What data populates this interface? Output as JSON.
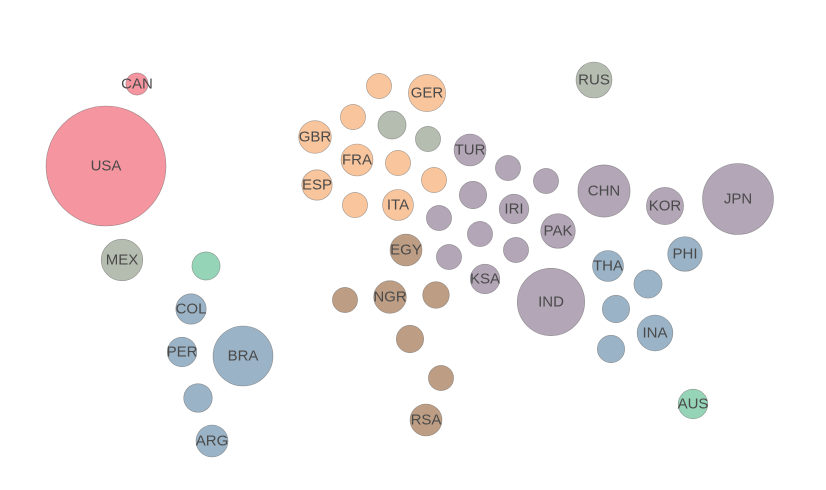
{
  "chart_data": {
    "type": "bubble-map",
    "title": "",
    "legend": "none",
    "colors": {
      "north_america": "#f4959f",
      "north_america_mex": "#b5bcb0",
      "south_america": "#9bb3c6",
      "south_america_extra": "#96d4b8",
      "europe": "#f8c59d",
      "europe_grey": "#b5bcb0",
      "africa": "#bd9e84",
      "asia": "#b3a6b7",
      "se_asia": "#9bb3c6",
      "russia": "#b5bcb0",
      "oceania": "#96d4b8"
    },
    "bubbles": [
      {
        "label": "CAN",
        "size": 3.4,
        "group": "north_america"
      },
      {
        "label": "USA",
        "size": 100,
        "group": "north_america"
      },
      {
        "label": "MEX",
        "size": 12,
        "group": "north_america_mex"
      },
      {
        "label": "",
        "size": 5.5,
        "group": "south_america_extra"
      },
      {
        "label": "COL",
        "size": 6.4,
        "group": "south_america"
      },
      {
        "label": "PER",
        "size": 6.1,
        "group": "south_america"
      },
      {
        "label": "BRA",
        "size": 25,
        "group": "south_america"
      },
      {
        "label": "",
        "size": 5.7,
        "group": "south_america"
      },
      {
        "label": "ARG",
        "size": 7.1,
        "group": "south_america"
      },
      {
        "label": "",
        "size": 4.4,
        "group": "europe"
      },
      {
        "label": "GER",
        "size": 9.6,
        "group": "europe"
      },
      {
        "label": "",
        "size": 4.4,
        "group": "europe"
      },
      {
        "label": "",
        "size": 5.5,
        "group": "europe_grey"
      },
      {
        "label": "",
        "size": 4.4,
        "group": "europe_grey"
      },
      {
        "label": "GBR",
        "size": 7.4,
        "group": "europe"
      },
      {
        "label": "FRA",
        "size": 7.1,
        "group": "europe"
      },
      {
        "label": "",
        "size": 4.4,
        "group": "europe"
      },
      {
        "label": "ESP",
        "size": 6.4,
        "group": "europe"
      },
      {
        "label": "",
        "size": 4.4,
        "group": "europe"
      },
      {
        "label": "",
        "size": 4.4,
        "group": "europe"
      },
      {
        "label": "ITA",
        "size": 6.7,
        "group": "europe"
      },
      {
        "label": "EGY",
        "size": 7.1,
        "group": "africa"
      },
      {
        "label": "",
        "size": 4.4,
        "group": "africa"
      },
      {
        "label": "NGR",
        "size": 7.4,
        "group": "africa"
      },
      {
        "label": "",
        "size": 4.9,
        "group": "africa"
      },
      {
        "label": "",
        "size": 5.2,
        "group": "africa"
      },
      {
        "label": "",
        "size": 4.4,
        "group": "africa"
      },
      {
        "label": "RSA",
        "size": 7.1,
        "group": "africa"
      },
      {
        "label": "TUR",
        "size": 7.1,
        "group": "asia"
      },
      {
        "label": "",
        "size": 4.4,
        "group": "asia"
      },
      {
        "label": "",
        "size": 4.4,
        "group": "asia"
      },
      {
        "label": "",
        "size": 5.2,
        "group": "asia"
      },
      {
        "label": "IRI",
        "size": 6.1,
        "group": "asia"
      },
      {
        "label": "",
        "size": 4.4,
        "group": "asia"
      },
      {
        "label": "",
        "size": 4.4,
        "group": "asia"
      },
      {
        "label": "",
        "size": 4.4,
        "group": "asia"
      },
      {
        "label": "",
        "size": 4.4,
        "group": "asia"
      },
      {
        "label": "KSA",
        "size": 6.1,
        "group": "asia"
      },
      {
        "label": "PAK",
        "size": 8.3,
        "group": "asia"
      },
      {
        "label": "CHN",
        "size": 18.9,
        "group": "asia"
      },
      {
        "label": "KOR",
        "size": 9.6,
        "group": "asia"
      },
      {
        "label": "JPN",
        "size": 35,
        "group": "asia"
      },
      {
        "label": "IND",
        "size": 31.6,
        "group": "asia"
      },
      {
        "label": "THA",
        "size": 6.7,
        "group": "se_asia"
      },
      {
        "label": "",
        "size": 5.5,
        "group": "se_asia"
      },
      {
        "label": "PHI",
        "size": 8.3,
        "group": "se_asia"
      },
      {
        "label": "",
        "size": 5.2,
        "group": "se_asia"
      },
      {
        "label": "INA",
        "size": 8.9,
        "group": "se_asia"
      },
      {
        "label": "",
        "size": 5.2,
        "group": "se_asia"
      },
      {
        "label": "RUS",
        "size": 9.0,
        "group": "russia"
      },
      {
        "label": "AUS",
        "size": 6.1,
        "group": "oceania"
      }
    ]
  }
}
